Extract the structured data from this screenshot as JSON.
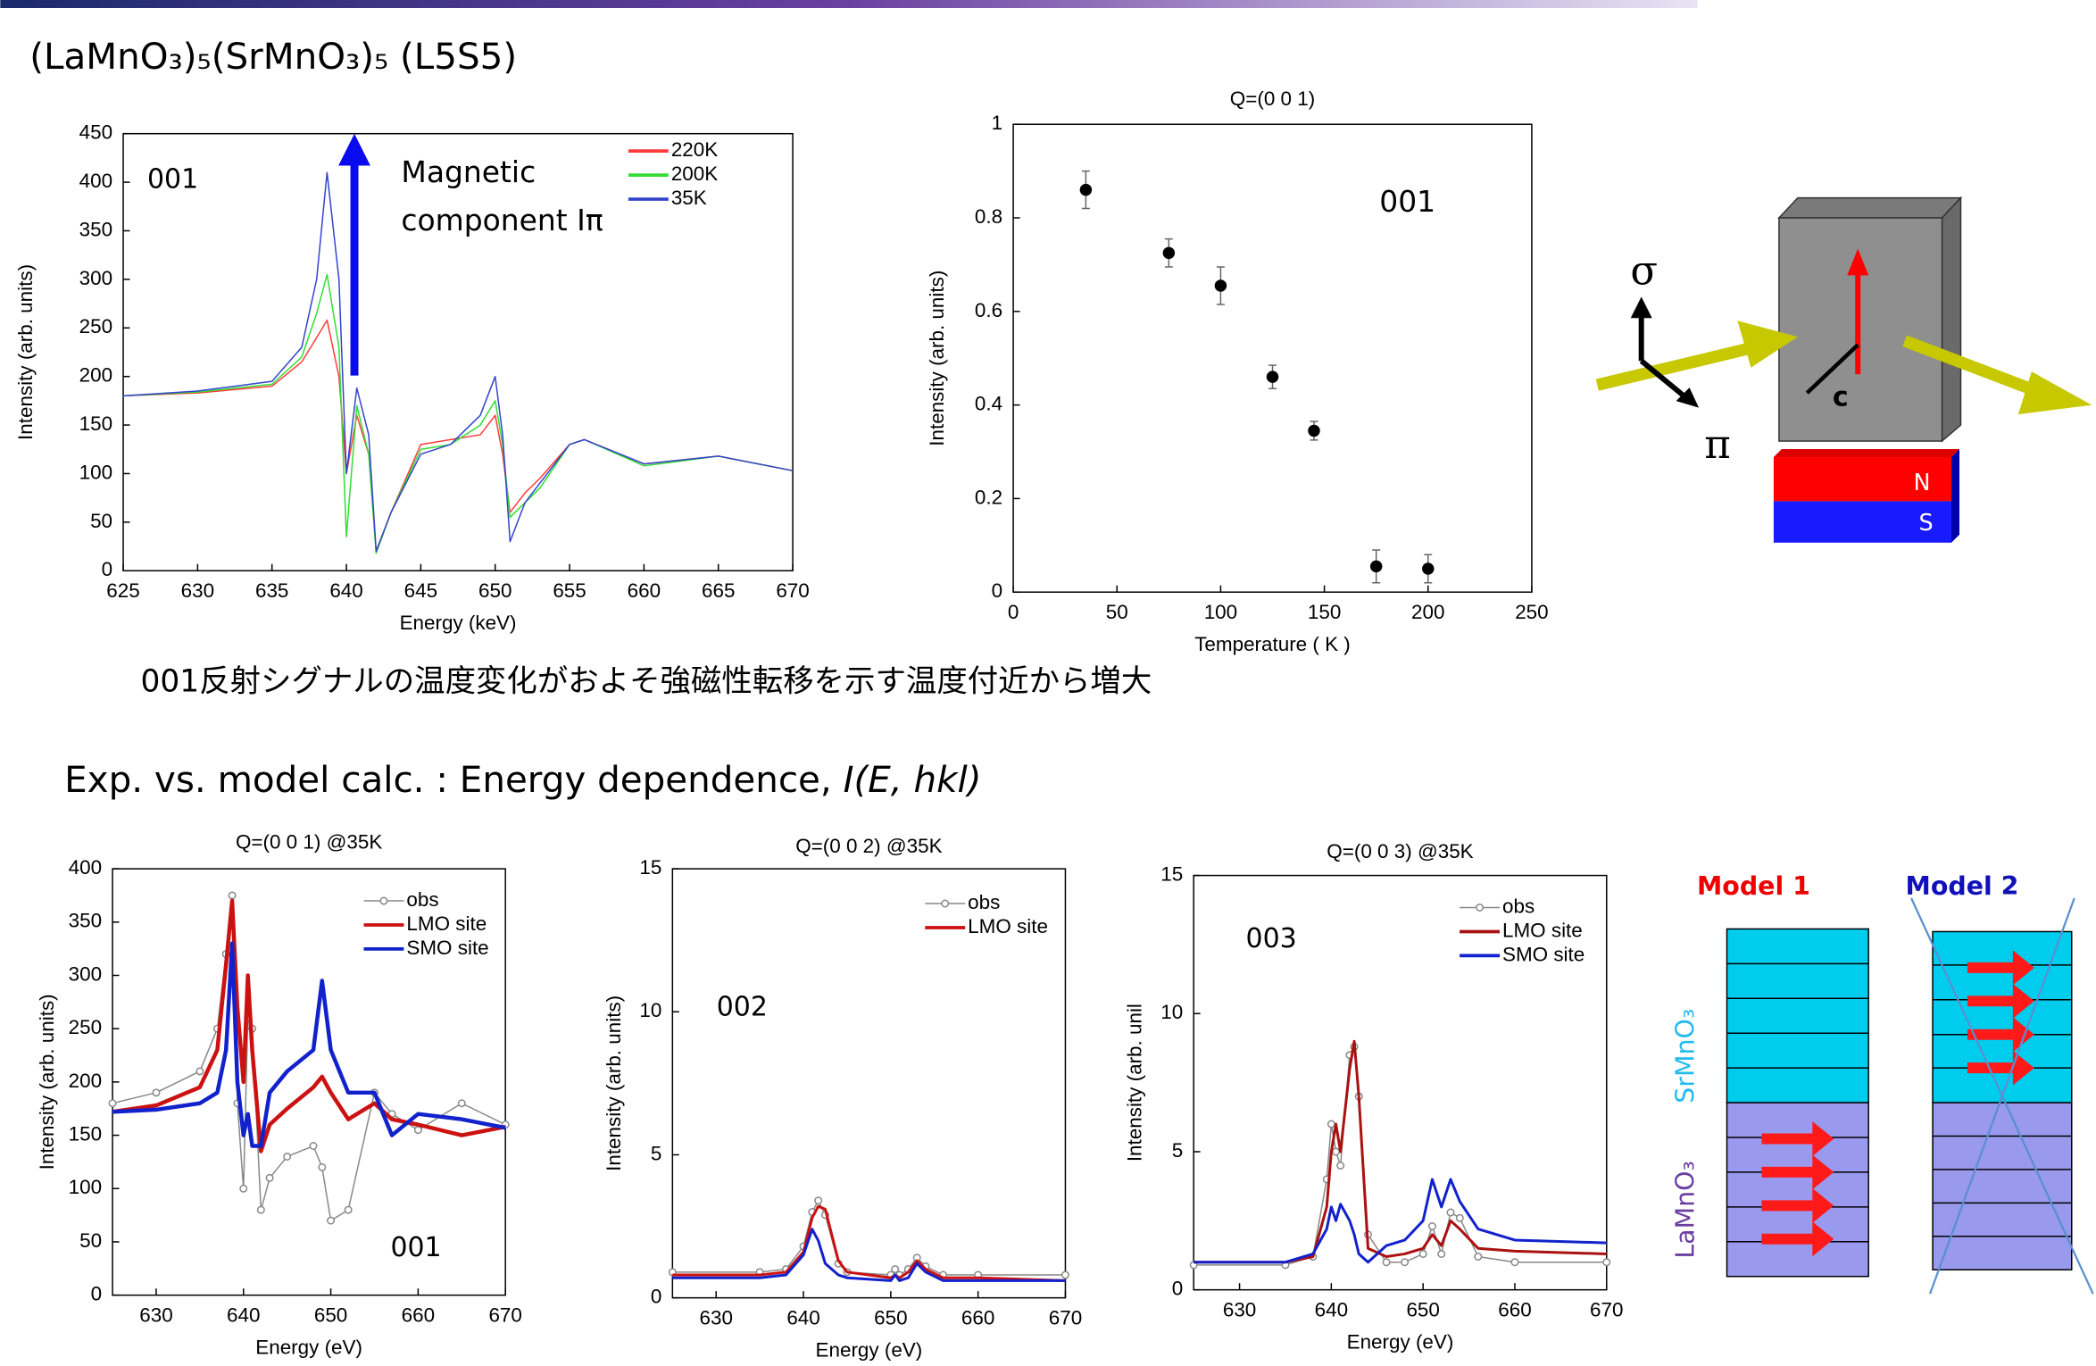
{
  "slide_title": "(LaMnO₃)₅(SrMnO₃)₅   (L5S5)",
  "caption": "001反射シグナルの温度変化がおよそ強磁性転移を示す温度付近から増大",
  "section_title": {
    "text": "Exp. vs. model calc. : Energy dependence, ",
    "italic": "I(E, hkl)"
  },
  "geometry_diagram": {
    "sigma": "σ",
    "pi": "π",
    "axis": "c",
    "north": "N",
    "south": "S"
  },
  "model_diagram": {
    "model1": "Model 1",
    "model2": "Model 2",
    "upper_layer": "SrMnO₃",
    "lower_layer": "LaMnO₃"
  },
  "chart_data": [
    {
      "type": "line",
      "xlabel": "Energy (keV)",
      "ylabel": "Intensity (arb. units)",
      "annotations": [
        "001",
        "Magnetic",
        "component Iπ"
      ],
      "x": [
        625,
        630,
        635,
        637,
        638,
        638.7,
        639.5,
        640,
        640.7,
        641.5,
        642,
        643,
        645,
        647,
        649,
        650,
        650.5,
        651,
        652,
        653,
        655,
        656,
        660,
        665,
        670
      ],
      "series": [
        {
          "name": "220K",
          "color": "#ff3b3b",
          "values": [
            180,
            183,
            190,
            215,
            240,
            258,
            200,
            100,
            160,
            120,
            20,
            60,
            130,
            135,
            140,
            160,
            120,
            60,
            80,
            95,
            130,
            135,
            110,
            118,
            103
          ]
        },
        {
          "name": "200K",
          "color": "#33dd33",
          "values": [
            180,
            184,
            192,
            220,
            265,
            305,
            230,
            35,
            170,
            120,
            18,
            60,
            125,
            130,
            150,
            175,
            130,
            55,
            70,
            85,
            130,
            135,
            108,
            118,
            103
          ]
        },
        {
          "name": "35K",
          "color": "#3344cc",
          "values": [
            180,
            185,
            195,
            230,
            300,
            410,
            300,
            100,
            188,
            140,
            20,
            60,
            120,
            130,
            160,
            200,
            140,
            30,
            70,
            90,
            130,
            135,
            110,
            118,
            103
          ]
        }
      ],
      "xlim": [
        625,
        670
      ],
      "xticks": [
        625,
        630,
        635,
        640,
        645,
        650,
        655,
        660,
        665,
        670
      ],
      "ylim": [
        0,
        450
      ],
      "yticks": [
        0,
        50,
        100,
        150,
        200,
        250,
        300,
        350,
        400,
        450
      ],
      "legend": "upper right"
    },
    {
      "type": "scatter",
      "title": "Q=(0 0 1)",
      "xlabel": "Temperature ( K )",
      "ylabel": "Intensity (arb. units)",
      "annotations": [
        "001"
      ],
      "color": "#000000",
      "x": [
        35,
        75,
        100,
        125,
        145,
        175,
        200
      ],
      "values": [
        0.86,
        0.725,
        0.655,
        0.46,
        0.345,
        0.055,
        0.05
      ],
      "errors": [
        0.04,
        0.03,
        0.04,
        0.025,
        0.02,
        0.035,
        0.03
      ],
      "xlim": [
        0,
        250
      ],
      "xticks": [
        0,
        50,
        100,
        150,
        200,
        250
      ],
      "ylim": [
        0,
        1
      ],
      "yticks": [
        0,
        0.2,
        0.4,
        0.6,
        0.8,
        1
      ]
    },
    {
      "type": "line",
      "title": "Q=(0 0 1)  @35K",
      "xlabel": "Energy (eV)",
      "ylabel": "Intensity (arb. units)",
      "annotations": [
        "001"
      ],
      "x": [
        625,
        630,
        635,
        637,
        638,
        638.7,
        639.3,
        640,
        640.5,
        641,
        642,
        643,
        645,
        648,
        649,
        650,
        652,
        655,
        657,
        660,
        665,
        670
      ],
      "series": [
        {
          "name": "obs",
          "color": "#888888",
          "marker": "o",
          "values": [
            180,
            190,
            210,
            250,
            320,
            375,
            180,
            100,
            260,
            250,
            80,
            110,
            130,
            140,
            120,
            70,
            80,
            190,
            170,
            155,
            180,
            160
          ]
        },
        {
          "name": "LMO site",
          "color": "#cc1111",
          "values": [
            172,
            178,
            195,
            230,
            310,
            370,
            270,
            200,
            300,
            230,
            135,
            160,
            175,
            195,
            205,
            190,
            165,
            180,
            165,
            160,
            150,
            158
          ]
        },
        {
          "name": "SMO site",
          "color": "#1122cc",
          "values": [
            172,
            174,
            180,
            190,
            230,
            330,
            200,
            150,
            170,
            140,
            140,
            190,
            210,
            230,
            295,
            230,
            190,
            190,
            150,
            170,
            165,
            157
          ]
        }
      ],
      "xlim": [
        625,
        670
      ],
      "xticks": [
        630,
        640,
        650,
        660,
        670
      ],
      "ylim": [
        0,
        400
      ],
      "yticks": [
        0,
        50,
        100,
        150,
        200,
        250,
        300,
        350,
        400
      ],
      "legend": "upper right"
    },
    {
      "type": "line",
      "title": "Q=(0 0 2)  @35K",
      "xlabel": "Energy (eV)",
      "ylabel": "Intensity (arb. units)",
      "annotations": [
        "002"
      ],
      "x": [
        625,
        635,
        638,
        640,
        641,
        641.7,
        642.5,
        644,
        645,
        650,
        650.5,
        651,
        652,
        653,
        654,
        656,
        660,
        670
      ],
      "series": [
        {
          "name": "obs",
          "color": "#888888",
          "marker": "o",
          "values": [
            0.9,
            0.9,
            1,
            1.8,
            3,
            3.4,
            2.9,
            1.2,
            0.9,
            0.8,
            1.0,
            0.8,
            1.0,
            1.4,
            1.1,
            0.8,
            0.8,
            0.8
          ]
        },
        {
          "name": "LMO site",
          "color": "#cc1111",
          "values": [
            0.8,
            0.8,
            0.9,
            1.6,
            2.8,
            3.2,
            3.1,
            1.3,
            0.9,
            0.7,
            0.8,
            0.7,
            0.9,
            1.3,
            1.0,
            0.7,
            0.7,
            0.6
          ]
        },
        {
          "color": "#1122cc",
          "values": [
            0.7,
            0.7,
            0.8,
            1.5,
            2.4,
            2.0,
            1.2,
            0.8,
            0.7,
            0.6,
            0.8,
            0.6,
            0.7,
            1.2,
            0.9,
            0.6,
            0.6,
            0.6
          ]
        }
      ],
      "xlim": [
        625,
        670
      ],
      "xticks": [
        630,
        640,
        650,
        660,
        670
      ],
      "ylim": [
        0,
        15
      ],
      "yticks": [
        0,
        5,
        10,
        15
      ],
      "legend": "upper right"
    },
    {
      "type": "line",
      "title": "Q=(0 0 3)  @35K",
      "xlabel": "Energy (eV)",
      "ylabel": "Intensity (arb. unil",
      "annotations": [
        "003"
      ],
      "x": [
        625,
        635,
        638,
        639.5,
        640,
        640.5,
        641,
        642,
        642.5,
        643,
        644,
        646,
        648,
        650,
        651,
        652,
        653,
        654,
        656,
        660,
        670
      ],
      "series": [
        {
          "name": "obs",
          "color": "#888888",
          "marker": "o",
          "values": [
            0.9,
            0.9,
            1.2,
            4,
            6,
            5,
            4.5,
            8.5,
            8.8,
            7,
            2,
            1,
            1,
            1.3,
            2.3,
            1.3,
            2.8,
            2.6,
            1.2,
            1.0,
            1.0
          ]
        },
        {
          "name": "LMO site",
          "color": "#aa1111",
          "values": [
            1.0,
            1.0,
            1.2,
            3,
            5,
            6,
            5,
            8,
            9,
            7,
            1.5,
            1.2,
            1.3,
            1.5,
            2,
            1.6,
            2.5,
            2.2,
            1.5,
            1.4,
            1.3
          ]
        },
        {
          "name": "SMO site",
          "color": "#1122cc",
          "values": [
            1.0,
            1.0,
            1.3,
            2.2,
            3,
            2.5,
            3.1,
            2.5,
            2,
            1.3,
            1.0,
            1.6,
            1.8,
            2.5,
            4,
            3,
            4,
            3.2,
            2.2,
            1.8,
            1.7
          ]
        }
      ],
      "xlim": [
        625,
        670
      ],
      "xticks": [
        630,
        640,
        650,
        660,
        670
      ],
      "ylim": [
        0,
        15
      ],
      "yticks": [
        0,
        5,
        10,
        15
      ],
      "legend": "upper right"
    }
  ]
}
